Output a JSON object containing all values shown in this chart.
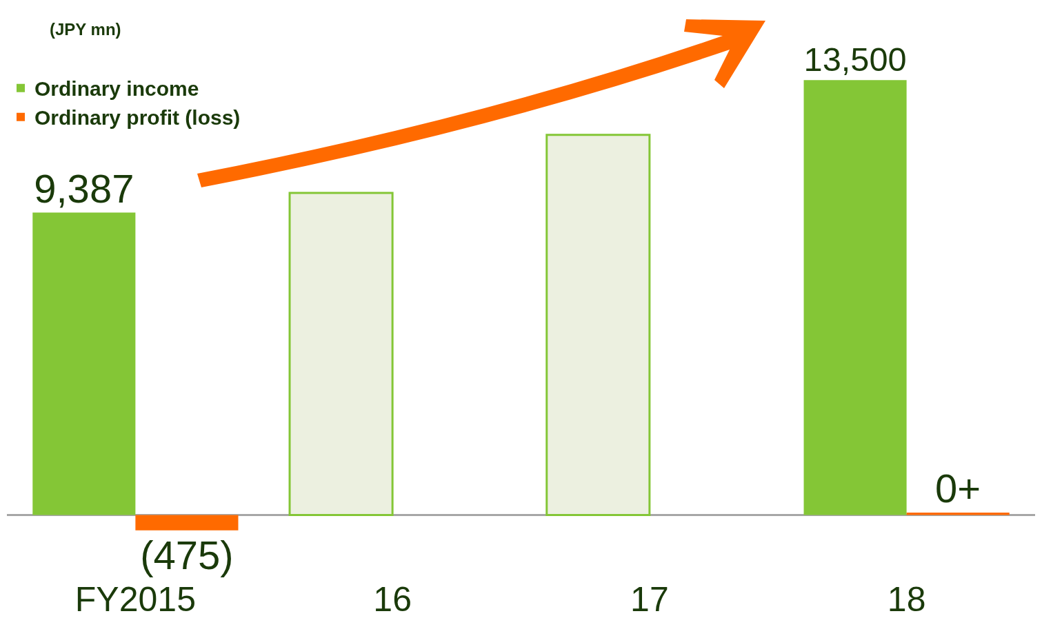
{
  "chart_data": {
    "type": "bar",
    "categories": [
      "FY2015",
      "16",
      "17",
      "18"
    ],
    "series": [
      {
        "name": "Ordinary income",
        "color": "#84c636",
        "colors": [
          "#84c636",
          "#ecf0e0",
          "#ecf0e0",
          "#84c636"
        ],
        "values": [
          9387,
          10000,
          11800,
          13500
        ],
        "value_labels": [
          "9,387",
          null,
          null,
          "13,500"
        ]
      },
      {
        "name": "Ordinary profit (loss)",
        "color": "#ff6a00",
        "values": [
          -475,
          null,
          null,
          75
        ],
        "value_labels": [
          "(475)",
          null,
          null,
          "0+"
        ]
      }
    ],
    "annotations": [
      "(JPY mn)"
    ],
    "legend": "top left",
    "grid": false
  }
}
